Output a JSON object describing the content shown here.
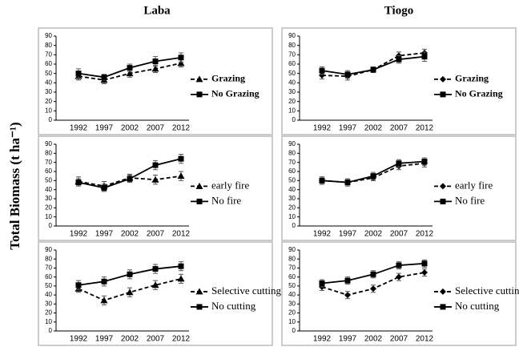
{
  "columns": [
    "Laba",
    "Tiogo"
  ],
  "ylabel": "Total Biomass (t ha⁻¹)",
  "chart_data": [
    {
      "type": "line",
      "categories": [
        "1992",
        "1997",
        "2002",
        "2007",
        "2012"
      ],
      "ylim": [
        0,
        90
      ],
      "yticks": [
        0,
        10,
        20,
        30,
        40,
        50,
        60,
        70,
        80,
        90
      ],
      "series": [
        {
          "name": "Grazing",
          "color": "#000000",
          "style": "dashed",
          "marker": "triangle",
          "values": [
            47,
            43,
            50,
            55,
            61
          ],
          "errors": [
            4,
            4,
            4,
            4,
            4
          ]
        },
        {
          "name": "No Grazing",
          "color": "#000000",
          "style": "solid",
          "marker": "square",
          "values": [
            50,
            46,
            56,
            63,
            67
          ],
          "errors": [
            5,
            3,
            4,
            5,
            5
          ]
        }
      ]
    },
    {
      "type": "line",
      "categories": [
        "1992",
        "1997",
        "2002",
        "2007",
        "2012"
      ],
      "ylim": [
        0,
        90
      ],
      "yticks": [
        0,
        10,
        20,
        30,
        40,
        50,
        60,
        70,
        80,
        90
      ],
      "series": [
        {
          "name": "Grazing",
          "color": "#000000",
          "style": "dashed",
          "marker": "diamond",
          "values": [
            48,
            47,
            54,
            69,
            72
          ],
          "errors": [
            4,
            4,
            3,
            4,
            4
          ]
        },
        {
          "name": "No Grazing",
          "color": "#000000",
          "style": "solid",
          "marker": "square",
          "values": [
            53,
            49,
            54,
            65,
            68
          ],
          "errors": [
            4,
            4,
            3,
            4,
            5
          ]
        }
      ]
    },
    {
      "type": "line",
      "categories": [
        "1992",
        "1997",
        "2002",
        "2007",
        "2012"
      ],
      "ylim": [
        0,
        90
      ],
      "yticks": [
        0,
        10,
        20,
        30,
        40,
        50,
        60,
        70,
        80,
        90
      ],
      "series": [
        {
          "name": "early fire",
          "color": "#000000",
          "style": "dashed",
          "marker": "triangle",
          "values": [
            49,
            44,
            53,
            51,
            55
          ],
          "errors": [
            5,
            5,
            4,
            5,
            5
          ]
        },
        {
          "name": "No fire",
          "color": "#000000",
          "style": "solid",
          "marker": "square",
          "values": [
            48,
            42,
            52,
            67,
            74
          ],
          "errors": [
            4,
            4,
            4,
            5,
            5
          ]
        }
      ]
    },
    {
      "type": "line",
      "categories": [
        "1992",
        "1997",
        "2002",
        "2007",
        "2012"
      ],
      "ylim": [
        0,
        90
      ],
      "yticks": [
        0,
        10,
        20,
        30,
        40,
        50,
        60,
        70,
        80,
        90
      ],
      "series": [
        {
          "name": "early fire",
          "color": "#000000",
          "style": "dashed",
          "marker": "diamond",
          "values": [
            50,
            48,
            53,
            66,
            69
          ],
          "errors": [
            4,
            4,
            3,
            4,
            4
          ]
        },
        {
          "name": "No fire",
          "color": "#000000",
          "style": "solid",
          "marker": "square",
          "values": [
            50,
            48,
            55,
            69,
            71
          ],
          "errors": [
            4,
            4,
            4,
            4,
            4
          ]
        }
      ]
    },
    {
      "type": "line",
      "categories": [
        "1992",
        "1997",
        "2002",
        "2007",
        "2012"
      ],
      "ylim": [
        0,
        90
      ],
      "yticks": [
        0,
        10,
        20,
        30,
        40,
        50,
        60,
        70,
        80,
        90
      ],
      "series": [
        {
          "name": "Selective cutting",
          "color": "#000000",
          "style": "dashed",
          "marker": "triangle",
          "values": [
            47,
            34,
            43,
            51,
            58
          ],
          "errors": [
            4,
            5,
            5,
            5,
            5
          ]
        },
        {
          "name": "No cutting",
          "color": "#000000",
          "style": "solid",
          "marker": "square",
          "values": [
            51,
            55,
            63,
            69,
            72
          ],
          "errors": [
            5,
            5,
            5,
            5,
            5
          ]
        }
      ]
    },
    {
      "type": "line",
      "categories": [
        "1992",
        "1997",
        "2002",
        "2007",
        "2012"
      ],
      "ylim": [
        0,
        90
      ],
      "yticks": [
        0,
        10,
        20,
        30,
        40,
        50,
        60,
        70,
        80,
        90
      ],
      "series": [
        {
          "name": "Selective cutting",
          "color": "#000000",
          "style": "dashed",
          "marker": "diamond",
          "values": [
            49,
            40,
            47,
            60,
            65
          ],
          "errors": [
            4,
            4,
            4,
            4,
            4
          ]
        },
        {
          "name": "No cutting",
          "color": "#000000",
          "style": "solid",
          "marker": "square",
          "values": [
            53,
            56,
            63,
            73,
            75
          ],
          "errors": [
            4,
            4,
            4,
            4,
            4
          ]
        }
      ]
    }
  ]
}
